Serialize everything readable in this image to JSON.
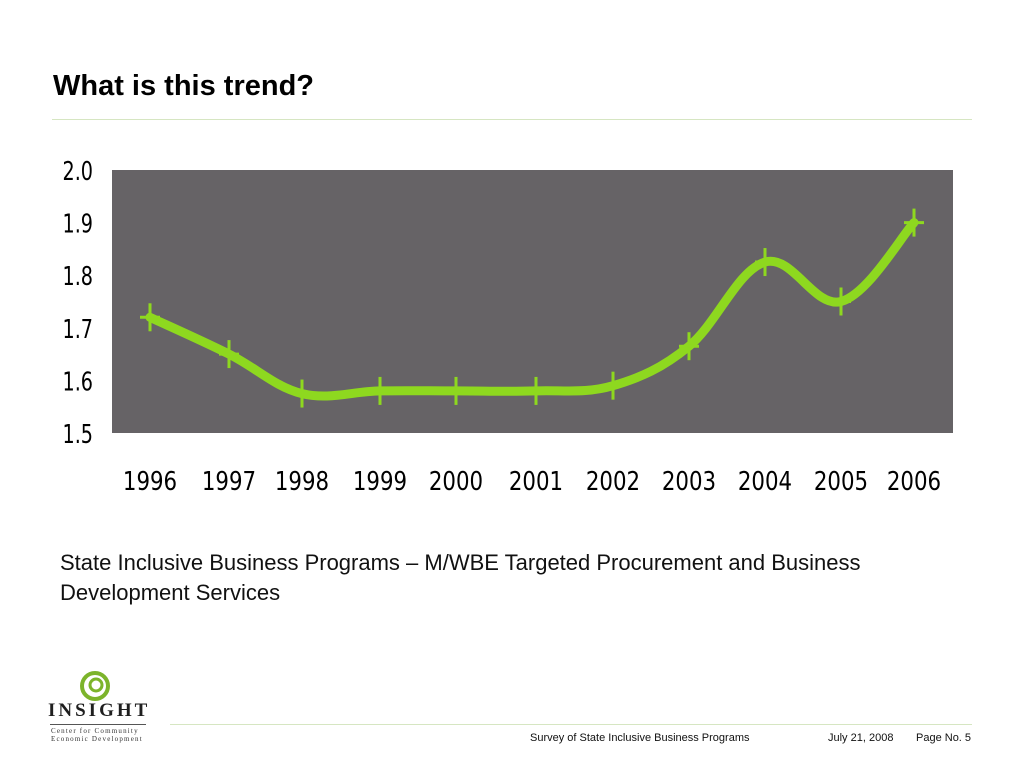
{
  "slide": {
    "title": "What is this trend?",
    "caption": "State Inclusive Business Programs – M/WBE Targeted Procurement and Business Development Services"
  },
  "logo": {
    "name": "INSIGHT",
    "line1": "Center for Community",
    "line2": "Economic Development"
  },
  "footer": {
    "survey": "Survey of State Inclusive Business Programs",
    "date": "July 21, 2008",
    "page": "Page No. 5"
  },
  "colors": {
    "plot_background": "#666366",
    "line": "#8ed81f",
    "text": "#000000",
    "rule": "#d6e6c2",
    "logo_green": "#7cb42b"
  },
  "chart_data": {
    "type": "line",
    "title": "",
    "xlabel": "",
    "ylabel": "",
    "categories": [
      "1996",
      "1997",
      "1998",
      "1999",
      "2000",
      "2001",
      "2002",
      "2003",
      "2004",
      "2005",
      "2006"
    ],
    "series": [
      {
        "values": [
          1.72,
          1.65,
          1.575,
          1.58,
          1.58,
          1.58,
          1.59,
          1.665,
          1.825,
          1.75,
          1.9
        ]
      }
    ],
    "y_ticks": [
      "1.5",
      "1.6",
      "1.7",
      "1.8",
      "1.9",
      "2.0"
    ],
    "ylim": [
      1.5,
      2.0
    ],
    "grid": false,
    "legend": "none",
    "smooth": true,
    "markers": "cross"
  }
}
